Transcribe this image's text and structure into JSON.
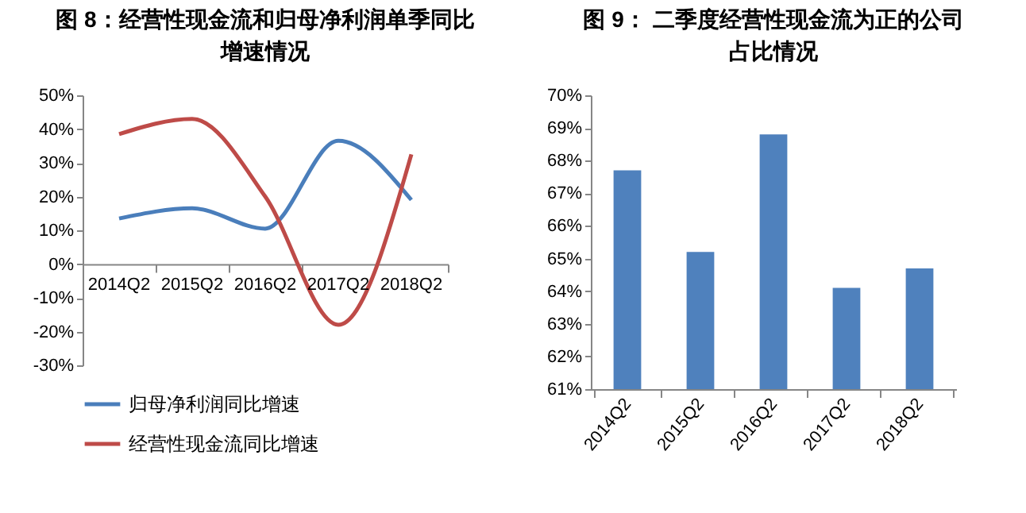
{
  "chart_data": [
    {
      "type": "line",
      "title": "图 8：经营性现金流和归母净利润单季同比增速情况",
      "categories": [
        "2014Q2",
        "2015Q2",
        "2016Q2",
        "2017Q2",
        "2018Q2"
      ],
      "series": [
        {
          "name": "归母净利润同比增速",
          "color": "#4a7ebb",
          "values": [
            13.5,
            16.5,
            10.5,
            36.5,
            19
          ]
        },
        {
          "name": "经营性现金流同比增速",
          "color": "#be4b48",
          "values": [
            38.5,
            43,
            20,
            -18,
            32.5
          ]
        }
      ],
      "ylim": [
        -30,
        50
      ],
      "yticks": [
        {
          "value": 50,
          "label": "50%"
        },
        {
          "value": 40,
          "label": "40%"
        },
        {
          "value": 30,
          "label": "30%"
        },
        {
          "value": 20,
          "label": "20%"
        },
        {
          "value": 10,
          "label": "10%"
        },
        {
          "value": 0,
          "label": "0%"
        },
        {
          "value": -10,
          "label": "-10%"
        },
        {
          "value": -20,
          "label": "-20%"
        },
        {
          "value": -30,
          "label": "-30%"
        }
      ],
      "legend": "bottom",
      "grid": false,
      "marker": "none"
    },
    {
      "type": "bar",
      "title": "图 9：  二季度经营性现金流为正的公司占比情况",
      "categories": [
        "2014Q2",
        "2015Q2",
        "2016Q2",
        "2017Q2",
        "2018Q2"
      ],
      "values": [
        67.7,
        65.2,
        68.8,
        64.1,
        64.7
      ],
      "color": "#4f81bd",
      "ylim": [
        61,
        70
      ],
      "yticks": [
        {
          "value": 70,
          "label": "70%"
        },
        {
          "value": 69,
          "label": "69%"
        },
        {
          "value": 68,
          "label": "68%"
        },
        {
          "value": 67,
          "label": "67%"
        },
        {
          "value": 66,
          "label": "66%"
        },
        {
          "value": 65,
          "label": "65%"
        },
        {
          "value": 64,
          "label": "64%"
        },
        {
          "value": 63,
          "label": "63%"
        },
        {
          "value": 62,
          "label": "62%"
        },
        {
          "value": 61,
          "label": "61%"
        }
      ],
      "grid": false
    }
  ]
}
